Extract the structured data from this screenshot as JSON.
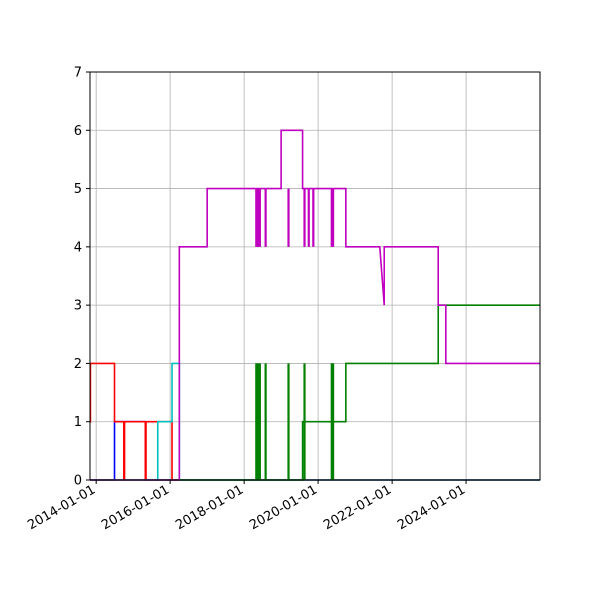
{
  "chart_data": {
    "type": "line",
    "title": "",
    "xlabel": "",
    "ylabel": "",
    "x_axis": "date",
    "xlim": [
      "2013-11-01",
      "2025-12-31"
    ],
    "ylim": [
      0,
      7
    ],
    "grid": true,
    "legend": "none",
    "x_ticks": [
      "2014-01-01",
      "2016-01-01",
      "2018-01-01",
      "2020-01-01",
      "2022-01-01",
      "2024-01-01"
    ],
    "y_ticks": [
      "0",
      "1",
      "2",
      "3",
      "4",
      "5",
      "6",
      "7"
    ],
    "series": [
      {
        "color": "#0000ff",
        "points": [
          [
            "2013-11-01",
            0
          ],
          [
            "2014-07-01",
            0
          ],
          [
            "2014-07-01",
            1
          ],
          [
            "2015-05-01",
            1
          ],
          [
            "2015-05-01",
            0
          ],
          [
            "2025-12-31",
            0
          ]
        ]
      },
      {
        "color": "#ff0000",
        "points": [
          [
            "2013-11-01",
            1
          ],
          [
            "2013-11-05",
            1
          ],
          [
            "2013-11-05",
            2
          ],
          [
            "2014-07-01",
            2
          ],
          [
            "2014-07-01",
            1
          ],
          [
            "2014-10-01",
            1
          ],
          [
            "2014-10-01",
            0
          ],
          [
            "2014-10-08",
            0
          ],
          [
            "2014-10-08",
            1
          ],
          [
            "2015-05-01",
            1
          ],
          [
            "2015-05-01",
            0
          ],
          [
            "2015-05-08",
            0
          ],
          [
            "2015-05-08",
            1
          ],
          [
            "2016-01-20",
            1
          ],
          [
            "2016-01-20",
            0
          ],
          [
            "2025-12-31",
            0
          ]
        ]
      },
      {
        "color": "#00bfbf",
        "points": [
          [
            "2013-11-01",
            0
          ],
          [
            "2015-09-01",
            0
          ],
          [
            "2015-09-01",
            1
          ],
          [
            "2016-01-20",
            1
          ],
          [
            "2016-01-20",
            2
          ],
          [
            "2016-04-01",
            2
          ],
          [
            "2016-04-01",
            0
          ],
          [
            "2025-12-31",
            0
          ]
        ]
      },
      {
        "color": "#008000",
        "points": [
          [
            "2013-11-01",
            0
          ],
          [
            "2019-08-01",
            0
          ],
          [
            "2019-08-01",
            1
          ],
          [
            "2020-10-01",
            1
          ],
          [
            "2020-10-01",
            2
          ],
          [
            "2023-04-01",
            2
          ],
          [
            "2023-04-01",
            3
          ],
          [
            "2025-12-31",
            3
          ]
        ]
      },
      {
        "color": "#bf00bf",
        "points": [
          [
            "2013-11-01",
            0
          ],
          [
            "2016-04-01",
            0
          ],
          [
            "2016-04-01",
            4
          ],
          [
            "2017-01-01",
            4
          ],
          [
            "2017-01-01",
            5
          ],
          [
            "2019-01-01",
            5
          ],
          [
            "2019-01-01",
            6
          ],
          [
            "2019-08-01",
            6
          ],
          [
            "2019-08-01",
            5
          ],
          [
            "2020-10-01",
            5
          ],
          [
            "2020-10-01",
            4
          ],
          [
            "2021-09-01",
            4
          ],
          [
            "2021-10-15",
            3
          ],
          [
            "2021-10-15",
            4
          ],
          [
            "2023-04-01",
            4
          ],
          [
            "2023-04-01",
            3
          ],
          [
            "2023-06-15",
            3
          ],
          [
            "2023-06-15",
            2
          ],
          [
            "2025-12-31",
            2
          ]
        ]
      }
    ],
    "spikes": [
      {
        "color": "#008000",
        "dates": [
          "2018-05-01",
          "2018-05-10",
          "2018-05-20",
          "2018-06-05",
          "2018-08-01",
          "2019-03-15",
          "2019-08-20",
          "2020-05-15",
          "2020-05-28"
        ],
        "low": 0,
        "high": 2
      },
      {
        "color": "#bf00bf",
        "dates": [
          "2018-05-01",
          "2018-05-10",
          "2018-05-20",
          "2018-06-05",
          "2018-08-01",
          "2019-03-15",
          "2019-08-20",
          "2019-10-01",
          "2019-11-15",
          "2020-05-15",
          "2020-05-28"
        ],
        "low": 4,
        "high": 5
      }
    ]
  }
}
